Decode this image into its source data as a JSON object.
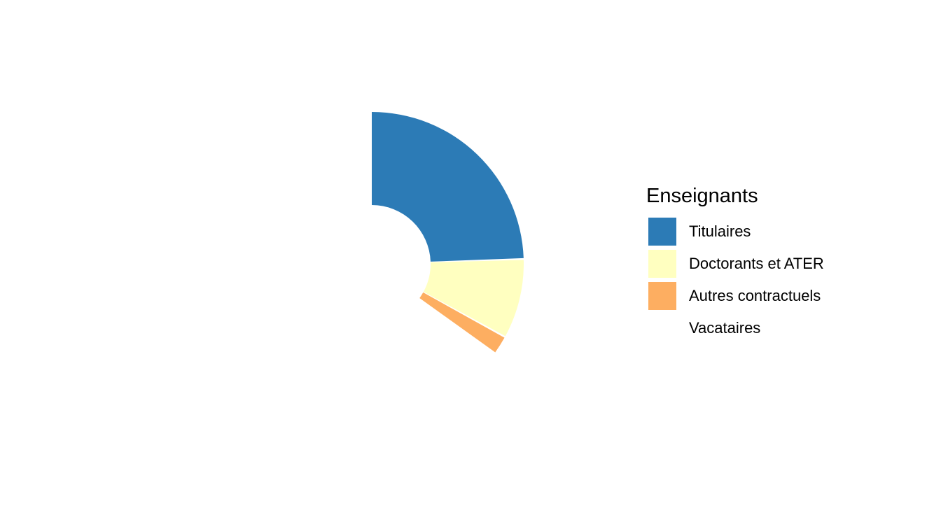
{
  "chart_data": {
    "type": "pie",
    "style": "donut-half",
    "legend": {
      "title": "Enseignants",
      "position": "right"
    },
    "categories": [
      "Titulaires",
      "Doctorants et ATER",
      "Autres contractuels",
      "Vacataires"
    ],
    "values": [
      49,
      17,
      4,
      30
    ],
    "colors": [
      "#2c7bb6",
      "#ffffc0",
      "#fdae61",
      "#ffffff"
    ]
  }
}
